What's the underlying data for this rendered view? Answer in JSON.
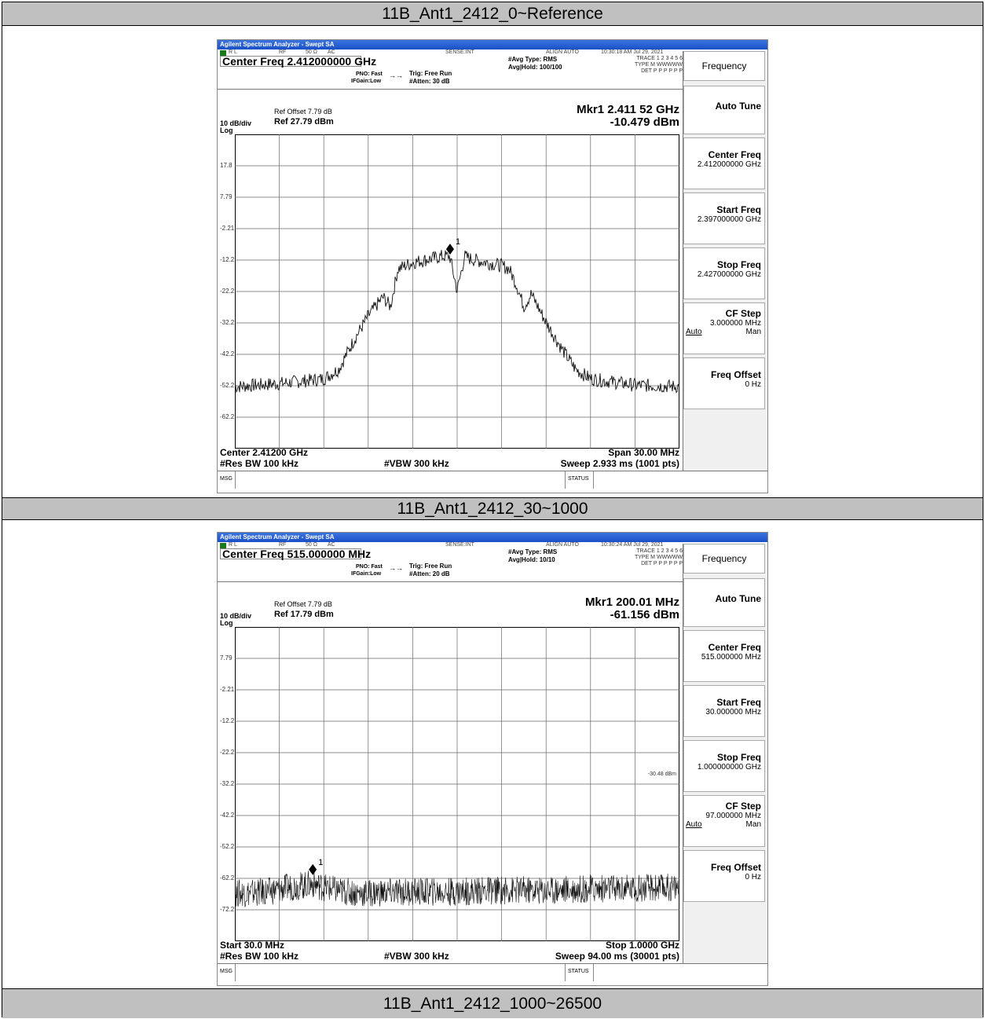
{
  "sections": [
    {
      "header": "11B_Ant1_2412_0~Reference",
      "app_title": "Agilent Spectrum Analyzer - Swept SA",
      "info": {
        "rl": "R L",
        "rf": "RF",
        "ohm": "50 Ω",
        "ac": "AC",
        "sense": "SENSE:INT",
        "align": "ALIGN AUTO",
        "time": "10:30:18 AM Jul 29, 2021"
      },
      "center_freq": "Center Freq 2.412000000 GHz",
      "pno": "PNO: Fast",
      "ifgain": "IFGain:Low",
      "trig": "Trig: Free Run",
      "atten": "#Atten: 30 dB",
      "avg_type": "#Avg Type: RMS",
      "avg_hold": "Avg|Hold: 100/100",
      "trace_line1": "TRACE 1 2 3 4 5 6",
      "trace_line2": "TYPE M WWWWW",
      "trace_line3": "DET P P P P P P",
      "ref_offset": "Ref Offset 7.79 dB",
      "ref_level": "Ref 27.79 dBm",
      "db_div": "10 dB/div",
      "log_label": "Log",
      "marker_freq": "Mkr1 2.411 52 GHz",
      "marker_amp": "-10.479 dBm",
      "marker_label": "1",
      "y_ticks": [
        "17.8",
        "7.79",
        "-2.21",
        "-12.2",
        "-22.2",
        "-32.2",
        "-42.2",
        "-52.2",
        "-62.2"
      ],
      "foot_left1": "Center 2.41200 GHz",
      "foot_right1": "Span 30.00 MHz",
      "foot_left2": "#Res BW 100 kHz",
      "foot_mid2": "#VBW 300 kHz",
      "foot_right2": "Sweep  2.933 ms (1001 pts)",
      "status_msg": "MSG",
      "status_label": "STATUS",
      "display_line_label": "",
      "softkeys": {
        "title": "Frequency",
        "auto_tune": "Auto Tune",
        "center_freq": "Center Freq",
        "center_freq_val": "2.412000000 GHz",
        "start_freq": "Start Freq",
        "start_freq_val": "2.397000000 GHz",
        "stop_freq": "Stop Freq",
        "stop_freq_val": "2.427000000 GHz",
        "cf_step": "CF Step",
        "cf_step_val": "3.000000 MHz",
        "auto": "Auto",
        "man": "Man",
        "freq_offset": "Freq Offset",
        "freq_offset_val": "0 Hz"
      },
      "chart_data": {
        "type": "line",
        "title": "",
        "xlabel": "",
        "ylabel": "",
        "xlim": [
          2.397,
          2.427
        ],
        "ylim": [
          -72.21,
          27.79
        ],
        "x_unit": "GHz",
        "y_unit": "dBm",
        "grid": true,
        "series": [
          {
            "x": [
              2.397,
              2.4,
              2.403,
              2.404,
              2.405,
              2.406,
              2.407,
              2.4075,
              2.408,
              2.4085,
              2.409,
              2.41,
              2.411,
              2.4115,
              2.412,
              2.4125,
              2.413,
              2.414,
              2.415,
              2.4155,
              2.416,
              2.4165,
              2.417,
              2.418,
              2.419,
              2.42,
              2.421,
              2.424,
              2.427
            ],
            "y": [
              -52.5,
              -51.5,
              -50,
              -47,
              -38,
              -30,
              -24,
              -27,
              -15,
              -14,
              -13,
              -12,
              -11,
              -11,
              -22,
              -11,
              -12,
              -13,
              -14,
              -15,
              -20,
              -27,
              -23,
              -32,
              -40,
              -47,
              -50,
              -52,
              -52.5
            ]
          }
        ],
        "markers": [
          {
            "label": "1",
            "x": 2.41152,
            "y": -10.479
          }
        ]
      }
    },
    {
      "header": "11B_Ant1_2412_30~1000",
      "app_title": "Agilent Spectrum Analyzer - Swept SA",
      "info": {
        "rl": "R L",
        "rf": "RF",
        "ohm": "50 Ω",
        "ac": "AC",
        "sense": "SENSE:INT",
        "align": "ALIGN AUTO",
        "time": "10:30:24 AM Jul 29, 2021"
      },
      "center_freq": "Center Freq 515.000000 MHz",
      "pno": "PNO: Fast",
      "ifgain": "IFGain:Low",
      "trig": "Trig: Free Run",
      "atten": "#Atten: 20 dB",
      "avg_type": "#Avg Type: RMS",
      "avg_hold": "Avg|Hold: 10/10",
      "trace_line1": "TRACE 1 2 3 4 5 6",
      "trace_line2": "TYPE M WWWWW",
      "trace_line3": "DET P P P P P P",
      "ref_offset": "Ref Offset 7.79 dB",
      "ref_level": "Ref 17.79 dBm",
      "db_div": "10 dB/div",
      "log_label": "Log",
      "marker_freq": "Mkr1 200.01 MHz",
      "marker_amp": "-61.156 dBm",
      "marker_label": "1",
      "y_ticks": [
        "7.79",
        "-2.21",
        "-12.2",
        "-22.2",
        "-32.2",
        "-42.2",
        "-52.2",
        "-62.2",
        "-72.2"
      ],
      "foot_left1": "Start 30.0 MHz",
      "foot_right1": "Stop 1.0000 GHz",
      "foot_left2": "#Res BW 100 kHz",
      "foot_mid2": "#VBW 300 kHz",
      "foot_right2": "Sweep  94.00 ms (30001 pts)",
      "status_msg": "MSG",
      "status_label": "STATUS",
      "display_line_label": "-30.48 dBm",
      "softkeys": {
        "title": "Frequency",
        "auto_tune": "Auto Tune",
        "center_freq": "Center Freq",
        "center_freq_val": "515.000000 MHz",
        "start_freq": "Start Freq",
        "start_freq_val": "30.000000 MHz",
        "stop_freq": "Stop Freq",
        "stop_freq_val": "1.000000000 GHz",
        "cf_step": "CF Step",
        "cf_step_val": "97.000000 MHz",
        "auto": "Auto",
        "man": "Man",
        "freq_offset": "Freq Offset",
        "freq_offset_val": "0 Hz"
      },
      "chart_data": {
        "type": "line",
        "title": "",
        "xlabel": "",
        "ylabel": "",
        "xlim": [
          30,
          1000
        ],
        "ylim": [
          -82.21,
          17.79
        ],
        "x_unit": "MHz",
        "y_unit": "dBm",
        "grid": true,
        "series": [
          {
            "x": [
              30,
              100,
              150,
              200,
              250,
              300,
              400,
              500,
              600,
              700,
              800,
              900,
              1000
            ],
            "y": [
              -67,
              -66.5,
              -65,
              -64,
              -66,
              -67,
              -66.5,
              -66.5,
              -66,
              -66,
              -65.5,
              -65.5,
              -65
            ]
          }
        ],
        "display_line": -30.48,
        "markers": [
          {
            "label": "1",
            "x": 200.01,
            "y": -61.156
          }
        ]
      }
    }
  ],
  "footer_header": "11B_Ant1_2412_1000~26500"
}
